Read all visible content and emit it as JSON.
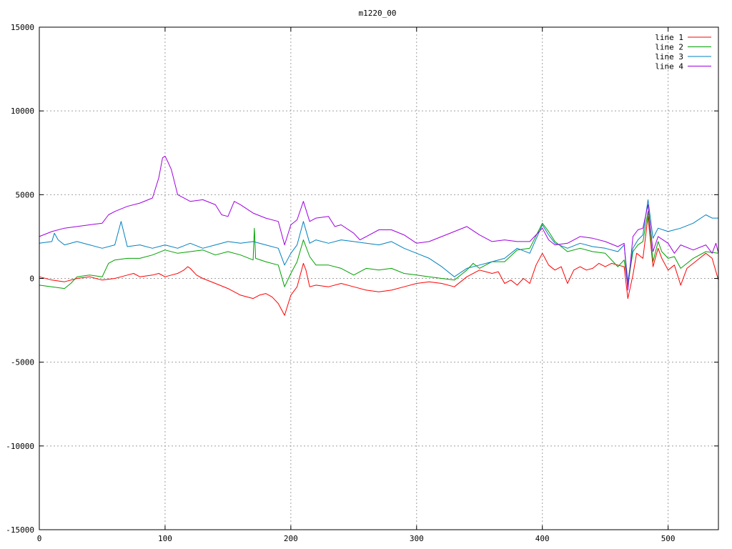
{
  "chart_data": {
    "type": "line",
    "title": "m1220_00",
    "xlabel": "",
    "ylabel": "",
    "xlim": [
      0,
      540
    ],
    "ylim": [
      -15000,
      15000
    ],
    "x_ticks": [
      0,
      100,
      200,
      300,
      400,
      500
    ],
    "y_ticks": [
      -15000,
      -10000,
      -5000,
      0,
      5000,
      10000,
      15000
    ],
    "grid": true,
    "legend_position": "top-right",
    "series": [
      {
        "name": "line 1",
        "color": "#ff0000",
        "points": [
          [
            0,
            100
          ],
          [
            10,
            -100
          ],
          [
            20,
            -200
          ],
          [
            30,
            0
          ],
          [
            40,
            100
          ],
          [
            50,
            -100
          ],
          [
            60,
            0
          ],
          [
            65,
            100
          ],
          [
            70,
            200
          ],
          [
            75,
            300
          ],
          [
            80,
            100
          ],
          [
            90,
            200
          ],
          [
            95,
            300
          ],
          [
            100,
            100
          ],
          [
            105,
            200
          ],
          [
            110,
            300
          ],
          [
            115,
            500
          ],
          [
            118,
            700
          ],
          [
            120,
            600
          ],
          [
            125,
            200
          ],
          [
            130,
            0
          ],
          [
            140,
            -300
          ],
          [
            150,
            -600
          ],
          [
            160,
            -1000
          ],
          [
            170,
            -1200
          ],
          [
            175,
            -1000
          ],
          [
            180,
            -900
          ],
          [
            185,
            -1100
          ],
          [
            190,
            -1500
          ],
          [
            195,
            -2200
          ],
          [
            200,
            -1000
          ],
          [
            205,
            -500
          ],
          [
            210,
            900
          ],
          [
            212,
            500
          ],
          [
            215,
            -500
          ],
          [
            220,
            -400
          ],
          [
            230,
            -500
          ],
          [
            240,
            -300
          ],
          [
            250,
            -500
          ],
          [
            260,
            -700
          ],
          [
            270,
            -800
          ],
          [
            280,
            -700
          ],
          [
            290,
            -500
          ],
          [
            300,
            -300
          ],
          [
            310,
            -200
          ],
          [
            320,
            -300
          ],
          [
            330,
            -500
          ],
          [
            340,
            100
          ],
          [
            350,
            500
          ],
          [
            355,
            400
          ],
          [
            360,
            300
          ],
          [
            365,
            400
          ],
          [
            370,
            -300
          ],
          [
            375,
            -100
          ],
          [
            380,
            -400
          ],
          [
            385,
            0
          ],
          [
            390,
            -300
          ],
          [
            395,
            800
          ],
          [
            400,
            1500
          ],
          [
            405,
            800
          ],
          [
            410,
            500
          ],
          [
            415,
            700
          ],
          [
            420,
            -300
          ],
          [
            425,
            500
          ],
          [
            430,
            700
          ],
          [
            435,
            500
          ],
          [
            440,
            600
          ],
          [
            445,
            900
          ],
          [
            450,
            700
          ],
          [
            455,
            900
          ],
          [
            460,
            800
          ],
          [
            465,
            700
          ],
          [
            468,
            -1200
          ],
          [
            472,
            200
          ],
          [
            475,
            1500
          ],
          [
            480,
            1200
          ],
          [
            484,
            3700
          ],
          [
            488,
            700
          ],
          [
            492,
            1800
          ],
          [
            495,
            1200
          ],
          [
            500,
            500
          ],
          [
            505,
            800
          ],
          [
            510,
            -400
          ],
          [
            515,
            600
          ],
          [
            520,
            900
          ],
          [
            525,
            1200
          ],
          [
            530,
            1500
          ],
          [
            535,
            1200
          ],
          [
            540,
            -100
          ]
        ]
      },
      {
        "name": "line 2",
        "color": "#00a000",
        "points": [
          [
            0,
            -400
          ],
          [
            10,
            -500
          ],
          [
            20,
            -600
          ],
          [
            25,
            -300
          ],
          [
            30,
            100
          ],
          [
            40,
            200
          ],
          [
            50,
            100
          ],
          [
            55,
            900
          ],
          [
            60,
            1100
          ],
          [
            70,
            1200
          ],
          [
            80,
            1200
          ],
          [
            90,
            1400
          ],
          [
            100,
            1700
          ],
          [
            110,
            1500
          ],
          [
            120,
            1600
          ],
          [
            130,
            1700
          ],
          [
            140,
            1400
          ],
          [
            150,
            1600
          ],
          [
            160,
            1400
          ],
          [
            170,
            1100
          ],
          [
            171,
            3000
          ],
          [
            172,
            1200
          ],
          [
            180,
            1000
          ],
          [
            190,
            800
          ],
          [
            195,
            -500
          ],
          [
            200,
            300
          ],
          [
            205,
            1000
          ],
          [
            210,
            2300
          ],
          [
            215,
            1300
          ],
          [
            220,
            800
          ],
          [
            230,
            800
          ],
          [
            240,
            600
          ],
          [
            250,
            200
          ],
          [
            260,
            600
          ],
          [
            270,
            500
          ],
          [
            280,
            600
          ],
          [
            290,
            300
          ],
          [
            300,
            200
          ],
          [
            310,
            100
          ],
          [
            320,
            0
          ],
          [
            330,
            -100
          ],
          [
            340,
            500
          ],
          [
            345,
            900
          ],
          [
            350,
            600
          ],
          [
            360,
            1000
          ],
          [
            370,
            1000
          ],
          [
            380,
            1700
          ],
          [
            390,
            1800
          ],
          [
            400,
            3300
          ],
          [
            405,
            2800
          ],
          [
            410,
            2200
          ],
          [
            420,
            1600
          ],
          [
            430,
            1800
          ],
          [
            440,
            1600
          ],
          [
            450,
            1500
          ],
          [
            460,
            700
          ],
          [
            465,
            1100
          ],
          [
            468,
            -400
          ],
          [
            472,
            1600
          ],
          [
            476,
            2000
          ],
          [
            480,
            2200
          ],
          [
            484,
            4000
          ],
          [
            488,
            1000
          ],
          [
            492,
            2200
          ],
          [
            495,
            1600
          ],
          [
            500,
            1200
          ],
          [
            505,
            1300
          ],
          [
            510,
            600
          ],
          [
            520,
            1200
          ],
          [
            530,
            1600
          ],
          [
            540,
            1500
          ]
        ]
      },
      {
        "name": "line 3",
        "color": "#0080c0",
        "points": [
          [
            0,
            2100
          ],
          [
            10,
            2200
          ],
          [
            12,
            2700
          ],
          [
            15,
            2300
          ],
          [
            20,
            2000
          ],
          [
            30,
            2200
          ],
          [
            40,
            2000
          ],
          [
            50,
            1800
          ],
          [
            60,
            2000
          ],
          [
            65,
            3400
          ],
          [
            70,
            1900
          ],
          [
            80,
            2000
          ],
          [
            90,
            1800
          ],
          [
            100,
            2000
          ],
          [
            110,
            1800
          ],
          [
            120,
            2100
          ],
          [
            130,
            1800
          ],
          [
            140,
            2000
          ],
          [
            150,
            2200
          ],
          [
            160,
            2100
          ],
          [
            170,
            2200
          ],
          [
            180,
            2000
          ],
          [
            190,
            1800
          ],
          [
            195,
            800
          ],
          [
            200,
            1500
          ],
          [
            205,
            2000
          ],
          [
            210,
            3400
          ],
          [
            215,
            2100
          ],
          [
            220,
            2300
          ],
          [
            230,
            2100
          ],
          [
            240,
            2300
          ],
          [
            250,
            2200
          ],
          [
            260,
            2100
          ],
          [
            270,
            2000
          ],
          [
            280,
            2200
          ],
          [
            290,
            1800
          ],
          [
            300,
            1500
          ],
          [
            310,
            1200
          ],
          [
            320,
            700
          ],
          [
            330,
            100
          ],
          [
            340,
            600
          ],
          [
            350,
            800
          ],
          [
            360,
            1000
          ],
          [
            370,
            1200
          ],
          [
            380,
            1800
          ],
          [
            390,
            1500
          ],
          [
            400,
            3200
          ],
          [
            405,
            2600
          ],
          [
            410,
            2100
          ],
          [
            420,
            1800
          ],
          [
            430,
            2100
          ],
          [
            440,
            1900
          ],
          [
            450,
            1800
          ],
          [
            460,
            1600
          ],
          [
            465,
            2000
          ],
          [
            468,
            -200
          ],
          [
            472,
            1800
          ],
          [
            476,
            2300
          ],
          [
            480,
            2600
          ],
          [
            484,
            4700
          ],
          [
            488,
            2400
          ],
          [
            492,
            3000
          ],
          [
            500,
            2800
          ],
          [
            510,
            3000
          ],
          [
            520,
            3300
          ],
          [
            530,
            3800
          ],
          [
            535,
            3600
          ],
          [
            540,
            3600
          ]
        ]
      },
      {
        "name": "line 4",
        "color": "#a000e0",
        "points": [
          [
            0,
            2500
          ],
          [
            10,
            2800
          ],
          [
            20,
            3000
          ],
          [
            30,
            3100
          ],
          [
            40,
            3200
          ],
          [
            50,
            3300
          ],
          [
            55,
            3800
          ],
          [
            60,
            4000
          ],
          [
            70,
            4300
          ],
          [
            80,
            4500
          ],
          [
            90,
            4800
          ],
          [
            95,
            6000
          ],
          [
            98,
            7200
          ],
          [
            100,
            7300
          ],
          [
            102,
            7000
          ],
          [
            105,
            6500
          ],
          [
            110,
            5000
          ],
          [
            120,
            4600
          ],
          [
            130,
            4700
          ],
          [
            140,
            4400
          ],
          [
            145,
            3800
          ],
          [
            150,
            3700
          ],
          [
            155,
            4600
          ],
          [
            160,
            4400
          ],
          [
            170,
            3900
          ],
          [
            180,
            3600
          ],
          [
            190,
            3400
          ],
          [
            195,
            2000
          ],
          [
            200,
            3200
          ],
          [
            205,
            3500
          ],
          [
            210,
            4600
          ],
          [
            215,
            3400
          ],
          [
            220,
            3600
          ],
          [
            230,
            3700
          ],
          [
            235,
            3100
          ],
          [
            240,
            3200
          ],
          [
            250,
            2700
          ],
          [
            255,
            2300
          ],
          [
            260,
            2500
          ],
          [
            270,
            2900
          ],
          [
            280,
            2900
          ],
          [
            290,
            2600
          ],
          [
            300,
            2100
          ],
          [
            310,
            2200
          ],
          [
            320,
            2500
          ],
          [
            330,
            2800
          ],
          [
            340,
            3100
          ],
          [
            350,
            2600
          ],
          [
            360,
            2200
          ],
          [
            370,
            2300
          ],
          [
            380,
            2200
          ],
          [
            390,
            2200
          ],
          [
            400,
            3000
          ],
          [
            405,
            2300
          ],
          [
            410,
            2000
          ],
          [
            420,
            2100
          ],
          [
            430,
            2500
          ],
          [
            440,
            2400
          ],
          [
            450,
            2200
          ],
          [
            460,
            1900
          ],
          [
            465,
            2100
          ],
          [
            468,
            -700
          ],
          [
            472,
            2500
          ],
          [
            476,
            2900
          ],
          [
            480,
            3000
          ],
          [
            484,
            4400
          ],
          [
            488,
            1600
          ],
          [
            492,
            2500
          ],
          [
            500,
            2100
          ],
          [
            505,
            1500
          ],
          [
            510,
            2000
          ],
          [
            520,
            1700
          ],
          [
            530,
            2000
          ],
          [
            535,
            1500
          ],
          [
            538,
            2100
          ],
          [
            540,
            1500
          ]
        ]
      }
    ]
  }
}
